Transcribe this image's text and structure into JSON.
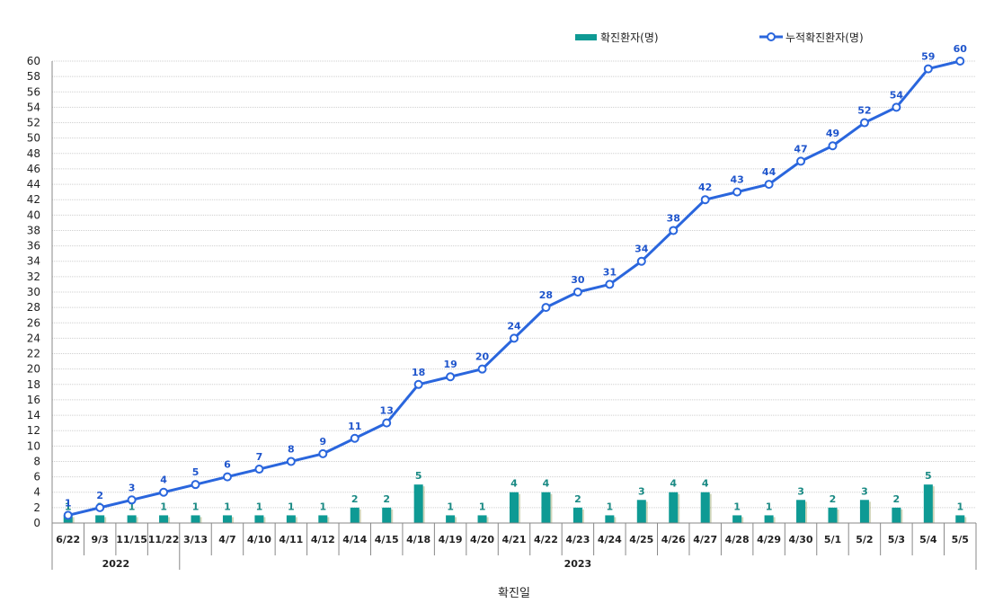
{
  "chart_data": {
    "type": "bar",
    "xlabel": "확진일",
    "ylabel": "",
    "ylim": [
      0,
      60
    ],
    "yticks": [
      0,
      2,
      4,
      6,
      8,
      10,
      12,
      14,
      16,
      18,
      20,
      22,
      24,
      26,
      28,
      30,
      32,
      34,
      36,
      38,
      40,
      42,
      44,
      46,
      48,
      50,
      52,
      54,
      56,
      58,
      60
    ],
    "grid": true,
    "legend_position": "top-right",
    "categories": [
      "6/22",
      "9/3",
      "11/15",
      "11/22",
      "3/13",
      "4/7",
      "4/10",
      "4/11",
      "4/12",
      "4/14",
      "4/15",
      "4/18",
      "4/19",
      "4/20",
      "4/21",
      "4/22",
      "4/23",
      "4/24",
      "4/25",
      "4/26",
      "4/27",
      "4/28",
      "4/29",
      "4/30",
      "5/1",
      "5/2",
      "5/3",
      "5/4",
      "5/5"
    ],
    "year_groups": [
      {
        "label": "2022",
        "count": 4
      },
      {
        "label": "2023",
        "count": 25
      }
    ],
    "series": [
      {
        "name": "확진환자(명)",
        "type": "bar",
        "color": "#0e9a94",
        "values": [
          1,
          1,
          1,
          1,
          1,
          1,
          1,
          1,
          1,
          2,
          2,
          5,
          1,
          1,
          4,
          4,
          2,
          1,
          3,
          4,
          4,
          1,
          1,
          3,
          2,
          3,
          2,
          5,
          1
        ]
      },
      {
        "name": "누적확진환자(명)",
        "type": "line",
        "color": "#2a66dd",
        "values": [
          1,
          2,
          3,
          4,
          5,
          6,
          7,
          8,
          9,
          11,
          13,
          18,
          19,
          20,
          24,
          28,
          30,
          31,
          34,
          38,
          42,
          43,
          44,
          47,
          49,
          52,
          54,
          59,
          60
        ]
      }
    ]
  }
}
